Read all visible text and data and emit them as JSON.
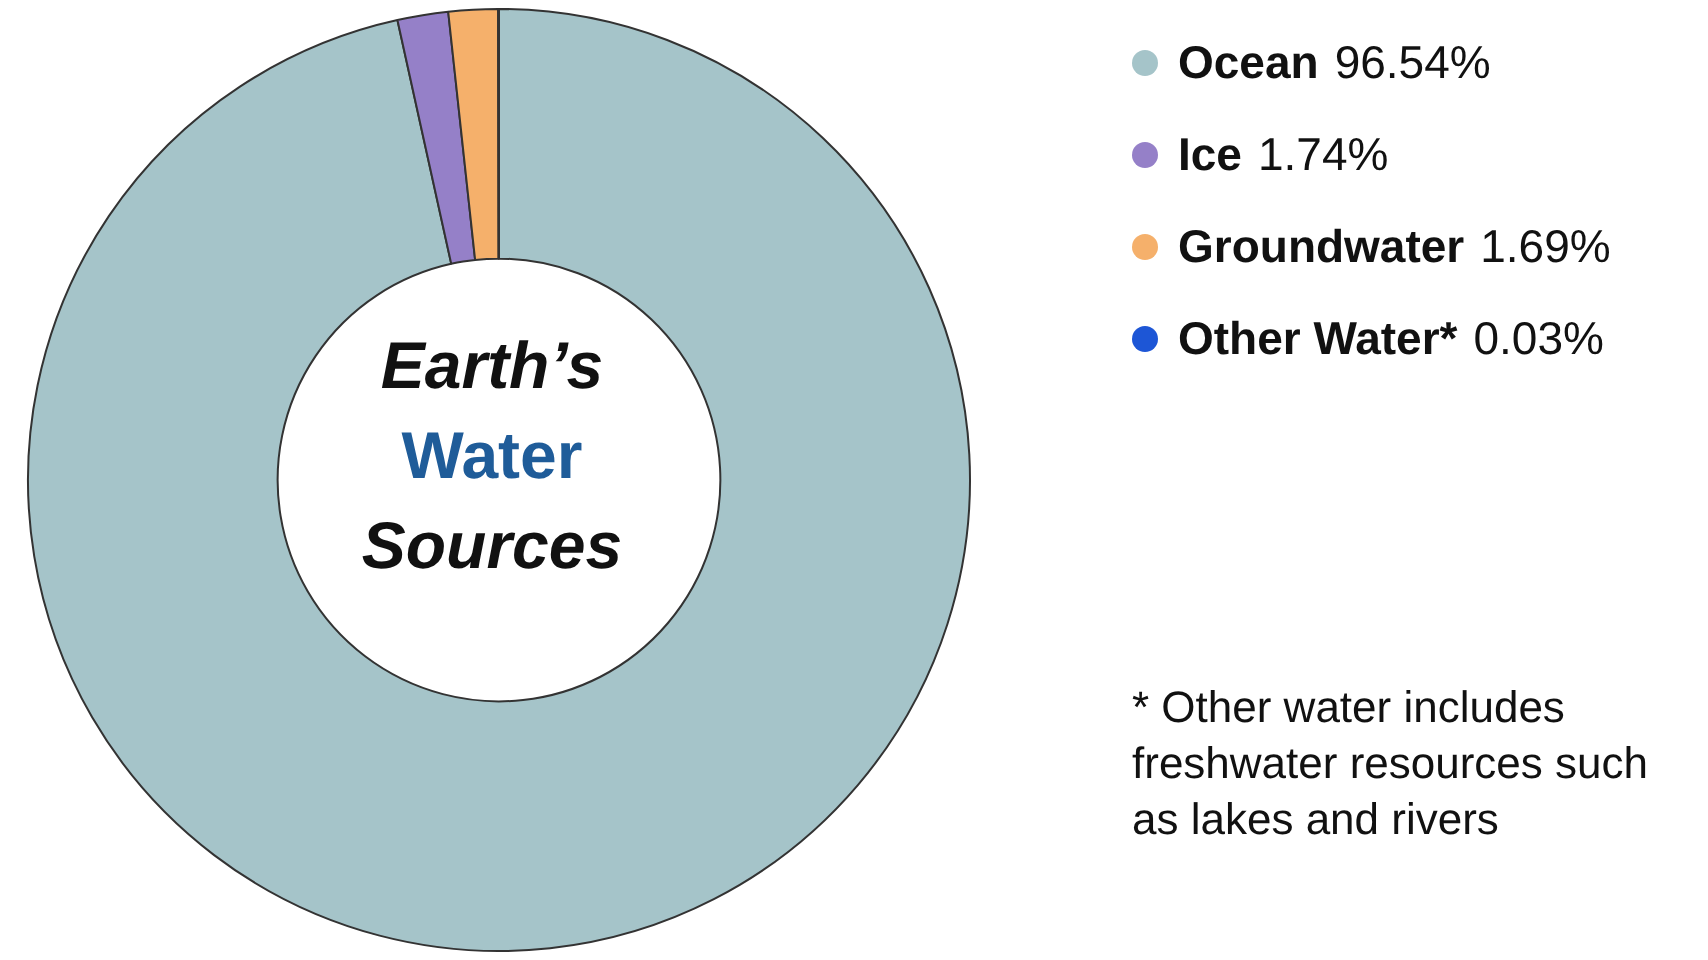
{
  "chart_data": {
    "type": "donut",
    "title": "Earth’s Water Sources",
    "categories": [
      "Ocean",
      "Ice",
      "Groundwater",
      "Other Water*"
    ],
    "values": [
      96.54,
      1.74,
      1.69,
      0.03
    ],
    "value_labels": [
      "96.54%",
      "1.74%",
      "1.69%",
      "0.03%"
    ],
    "colors": [
      "#a5c4c9",
      "#9580c8",
      "#f5b06b",
      "#1d56d6"
    ],
    "legend": "right",
    "annotations": [
      "* Other water includes freshwater resources such as lakes and rivers"
    ]
  }
}
